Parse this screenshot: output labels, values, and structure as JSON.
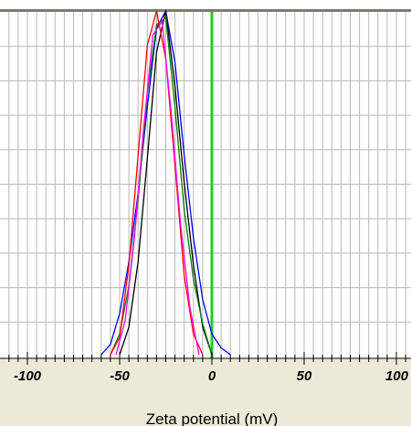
{
  "chart_data": {
    "type": "line",
    "title": "",
    "xlabel": "Zeta potential (mV)",
    "ylabel": "",
    "xlim": [
      -110,
      110
    ],
    "ylim": [
      0,
      1
    ],
    "grid": true,
    "x_ticks": [
      "-100",
      "-50",
      "0",
      "50",
      "100"
    ],
    "x_tick_values": [
      -100,
      -50,
      0,
      50,
      100
    ],
    "reference_line": {
      "x": 0,
      "color": "#22cc22"
    },
    "series": [
      {
        "color": "#0000ff",
        "x": [
          -60,
          -55,
          -50,
          -45,
          -40,
          -35,
          -30,
          -25,
          -20,
          -15,
          -10,
          -5,
          0,
          5,
          10
        ],
        "y": [
          0,
          0.03,
          0.12,
          0.27,
          0.47,
          0.72,
          0.95,
          1.0,
          0.85,
          0.58,
          0.34,
          0.16,
          0.06,
          0.02,
          0
        ]
      },
      {
        "color": "#000000",
        "x": [
          -50,
          -45,
          -40,
          -35,
          -30,
          -25,
          -20,
          -15,
          -10,
          -5,
          0
        ],
        "y": [
          0,
          0.08,
          0.27,
          0.57,
          0.88,
          1.0,
          0.78,
          0.5,
          0.26,
          0.08,
          0
        ]
      },
      {
        "color": "#008000",
        "x": [
          -55,
          -50,
          -45,
          -40,
          -35,
          -30,
          -25,
          -20,
          -15,
          -10,
          -5,
          0
        ],
        "y": [
          0,
          0.06,
          0.2,
          0.45,
          0.76,
          0.96,
          0.98,
          0.72,
          0.42,
          0.22,
          0.09,
          0
        ]
      },
      {
        "color": "#ff0000",
        "x": [
          -55,
          -50,
          -45,
          -40,
          -35,
          -30,
          -25,
          -20,
          -15,
          -10,
          -5
        ],
        "y": [
          0,
          0.05,
          0.26,
          0.58,
          0.9,
          1.0,
          0.86,
          0.55,
          0.23,
          0.06,
          0
        ]
      },
      {
        "color": "#ff00ff",
        "x": [
          -52,
          -47,
          -42,
          -37,
          -32,
          -27,
          -22,
          -17,
          -12,
          -7
        ],
        "y": [
          0,
          0.1,
          0.34,
          0.66,
          0.93,
          0.97,
          0.7,
          0.38,
          0.14,
          0
        ]
      }
    ]
  }
}
